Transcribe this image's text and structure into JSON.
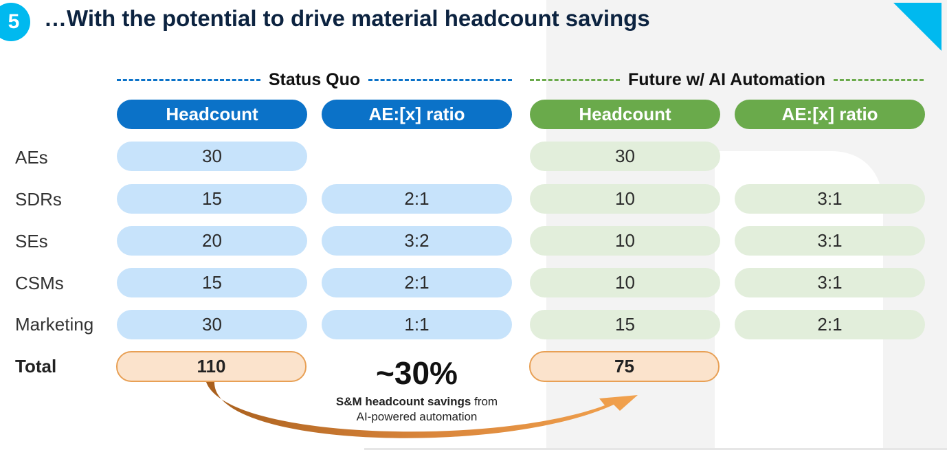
{
  "slide": {
    "step_number": "5",
    "title": "…With the potential to drive material headcount savings"
  },
  "status_quo": {
    "section_title": "Status Quo",
    "col_headcount": "Headcount",
    "col_ratio": "AE:[x] ratio"
  },
  "future": {
    "section_title": "Future w/ AI Automation",
    "col_headcount": "Headcount",
    "col_ratio": "AE:[x] ratio"
  },
  "rows": [
    {
      "label": "AEs",
      "sq_headcount": "30",
      "sq_ratio": "",
      "fu_headcount": "30",
      "fu_ratio": ""
    },
    {
      "label": "SDRs",
      "sq_headcount": "15",
      "sq_ratio": "2:1",
      "fu_headcount": "10",
      "fu_ratio": "3:1"
    },
    {
      "label": "SEs",
      "sq_headcount": "20",
      "sq_ratio": "3:2",
      "fu_headcount": "10",
      "fu_ratio": "3:1"
    },
    {
      "label": "CSMs",
      "sq_headcount": "15",
      "sq_ratio": "2:1",
      "fu_headcount": "10",
      "fu_ratio": "3:1"
    },
    {
      "label": "Marketing",
      "sq_headcount": "30",
      "sq_ratio": "1:1",
      "fu_headcount": "15",
      "fu_ratio": "2:1"
    }
  ],
  "total": {
    "label": "Total",
    "sq_headcount": "110",
    "fu_headcount": "75"
  },
  "savings": {
    "percent": "~30%",
    "caption_bold": "S&M headcount savings",
    "caption_rest": " from",
    "caption_line2": "AI-powered automation"
  },
  "colors": {
    "status_quo_accent": "#0b72c8",
    "status_quo_cell": "#c7e3fb",
    "future_accent": "#6aaa4b",
    "future_cell": "#e2eedb",
    "total_fill": "#fbe3cc",
    "total_border": "#e8a055",
    "badge": "#00b9ef",
    "title": "#0c2340"
  }
}
